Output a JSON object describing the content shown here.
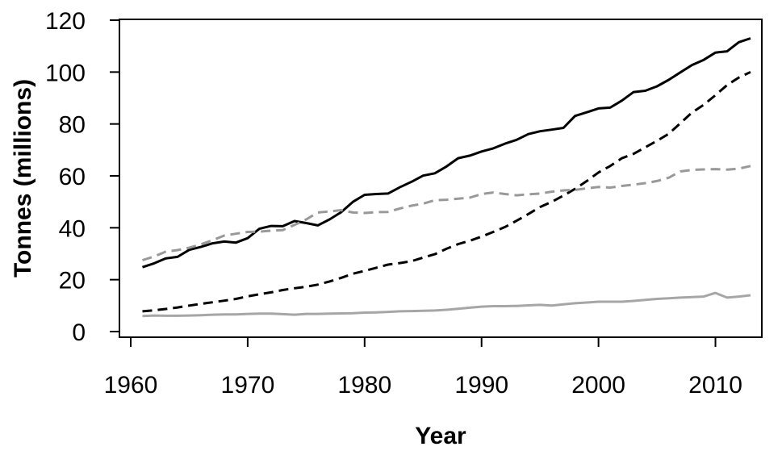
{
  "chart_data": {
    "type": "line",
    "title": "",
    "xlabel": "Year",
    "ylabel": "Tonnes (millions)",
    "xlim": [
      1960,
      2013
    ],
    "ylim": [
      0,
      120
    ],
    "xticks": [
      1960,
      1970,
      1980,
      1990,
      2000,
      2010
    ],
    "yticks": [
      0,
      20,
      40,
      60,
      80,
      100,
      120
    ],
    "grid": false,
    "legend": "none",
    "x": [
      1961,
      1962,
      1963,
      1964,
      1965,
      1966,
      1967,
      1968,
      1969,
      1970,
      1971,
      1972,
      1973,
      1974,
      1975,
      1976,
      1977,
      1978,
      1979,
      1980,
      1981,
      1982,
      1983,
      1984,
      1985,
      1986,
      1987,
      1988,
      1989,
      1990,
      1991,
      1992,
      1993,
      1994,
      1995,
      1996,
      1997,
      1998,
      1999,
      2000,
      2001,
      2002,
      2003,
      2004,
      2005,
      2006,
      2007,
      2008,
      2009,
      2010,
      2011,
      2012,
      2013
    ],
    "series": [
      {
        "style": "solid",
        "color": "#000000",
        "values": [
          24.8,
          26.3,
          28.2,
          28.8,
          31.5,
          32.6,
          34.0,
          34.7,
          34.3,
          36.0,
          39.6,
          40.7,
          40.6,
          42.6,
          41.8,
          40.9,
          43.2,
          46.0,
          50.0,
          52.7,
          53.0,
          53.2,
          55.6,
          57.7,
          60.1,
          61.0,
          63.6,
          66.8,
          67.8,
          69.4,
          70.6,
          72.4,
          73.9,
          76.1,
          77.2,
          77.8,
          78.5,
          83.1,
          84.5,
          86.0,
          86.3,
          89.0,
          92.3,
          92.8,
          94.5,
          97.0,
          99.9,
          102.7,
          104.7,
          107.5,
          108.0,
          111.5,
          113.0
        ]
      },
      {
        "style": "dashed",
        "color": "#000000",
        "values": [
          7.8,
          8.2,
          8.7,
          9.3,
          10.0,
          10.7,
          11.3,
          11.9,
          12.6,
          13.6,
          14.4,
          15.1,
          16.0,
          16.7,
          17.3,
          18.1,
          19.3,
          20.7,
          22.3,
          23.4,
          24.6,
          25.8,
          26.4,
          27.1,
          28.5,
          29.8,
          31.9,
          33.7,
          35.0,
          36.6,
          38.4,
          40.3,
          42.7,
          45.3,
          48.0,
          50.0,
          52.4,
          55.0,
          58.0,
          61.3,
          63.8,
          66.8,
          68.5,
          71.0,
          73.5,
          76.2,
          80.3,
          84.4,
          87.4,
          91.1,
          95.0,
          97.9,
          100.0
        ]
      },
      {
        "style": "dashed",
        "color": "#999999",
        "values": [
          27.5,
          28.9,
          30.8,
          31.4,
          32.3,
          33.6,
          35.2,
          37.0,
          37.7,
          38.4,
          38.5,
          38.9,
          39.1,
          41.1,
          43.2,
          45.9,
          46.3,
          46.8,
          45.9,
          45.7,
          46.0,
          46.1,
          47.4,
          48.5,
          49.3,
          50.6,
          50.8,
          51.2,
          51.6,
          53.0,
          53.6,
          53.0,
          52.5,
          52.9,
          53.2,
          53.9,
          54.4,
          54.6,
          55.2,
          55.7,
          55.5,
          56.1,
          56.6,
          57.2,
          58.0,
          59.3,
          61.7,
          62.3,
          62.5,
          62.6,
          62.4,
          62.8,
          63.8
        ]
      },
      {
        "style": "solid",
        "color": "#a6a6a6",
        "values": [
          6.0,
          6.2,
          6.1,
          6.1,
          6.2,
          6.3,
          6.5,
          6.6,
          6.6,
          6.8,
          6.9,
          6.9,
          6.7,
          6.5,
          6.8,
          6.8,
          6.9,
          7.0,
          7.1,
          7.3,
          7.4,
          7.6,
          7.8,
          7.9,
          8.0,
          8.1,
          8.4,
          8.8,
          9.2,
          9.6,
          9.8,
          9.8,
          9.9,
          10.1,
          10.3,
          10.0,
          10.5,
          10.9,
          11.2,
          11.5,
          11.5,
          11.5,
          11.8,
          12.2,
          12.6,
          12.8,
          13.1,
          13.3,
          13.5,
          14.9,
          13.1,
          13.5,
          14.0
        ]
      }
    ]
  }
}
